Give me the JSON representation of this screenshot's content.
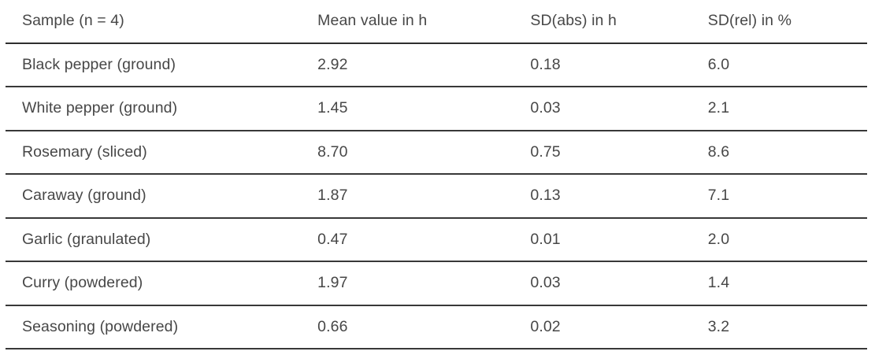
{
  "table": {
    "columns": [
      "Sample (n = 4)",
      "Mean value in h",
      "SD(abs) in h",
      "SD(rel) in %"
    ],
    "rows": [
      [
        "Black pepper (ground)",
        "2.92",
        "0.18",
        "6.0"
      ],
      [
        "White pepper (ground)",
        "1.45",
        "0.03",
        "2.1"
      ],
      [
        "Rosemary (sliced)",
        "8.70",
        "0.75",
        "8.6"
      ],
      [
        "Caraway (ground)",
        "1.87",
        "0.13",
        "7.1"
      ],
      [
        "Garlic (granulated)",
        "0.47",
        "0.01",
        "2.0"
      ],
      [
        "Curry (powdered)",
        "1.97",
        "0.03",
        "1.4"
      ],
      [
        "Seasoning (powdered)",
        "0.66",
        "0.02",
        "3.2"
      ]
    ]
  },
  "colors": {
    "text": "#474747",
    "rule": "#383838",
    "background": "#ffffff"
  }
}
